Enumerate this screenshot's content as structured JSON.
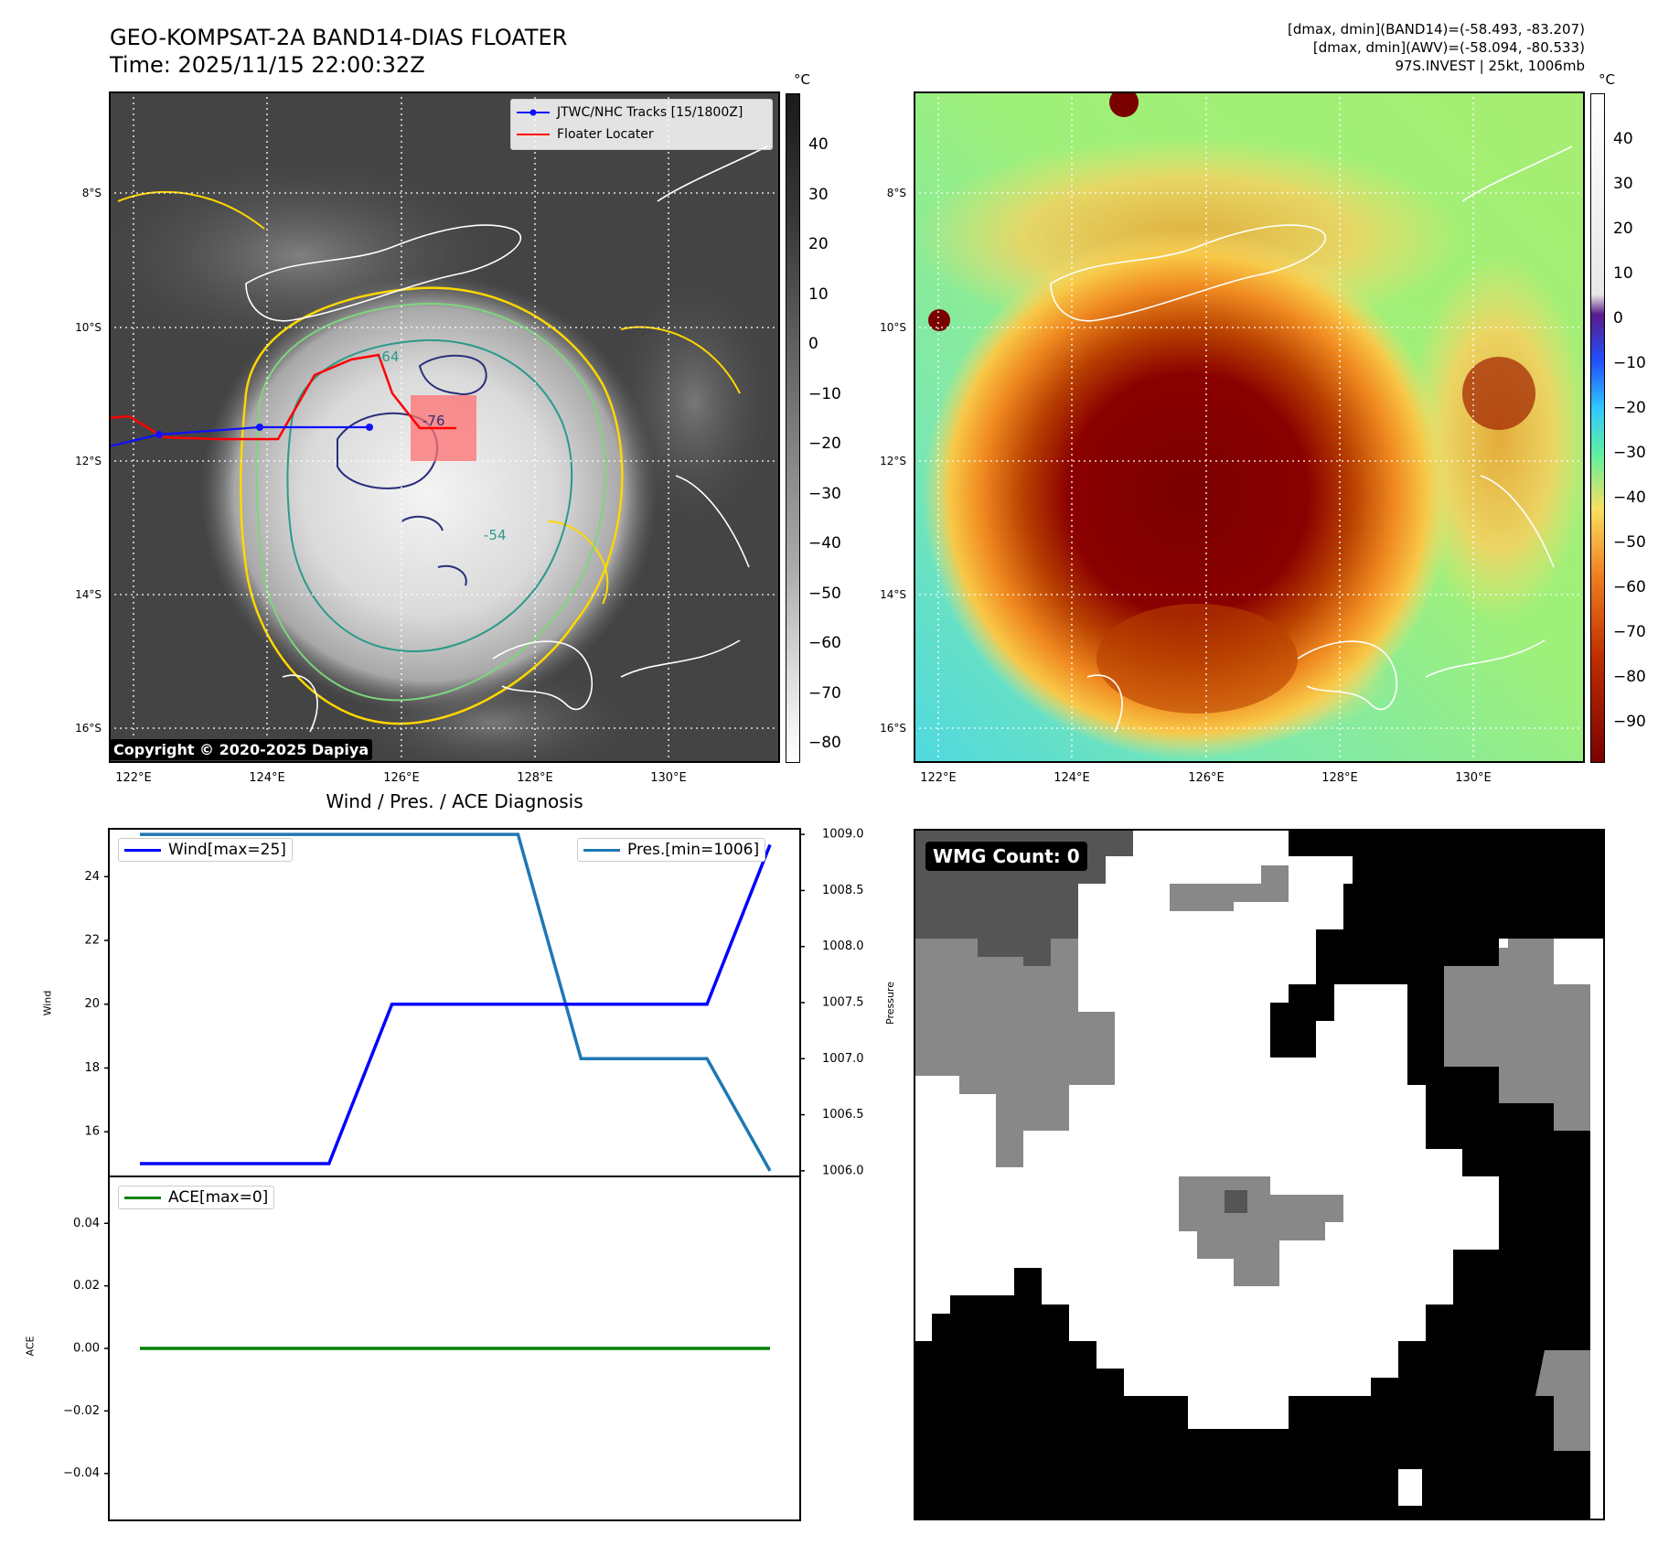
{
  "header": {
    "title_line1": "GEO-KOMPSAT-2A BAND14-DIAS FLOATER",
    "title_line2": "Time: 2025/11/15 22:00:32Z",
    "info_line1": "[dmax, dmin](BAND14)=(-58.493, -83.207)",
    "info_line2": "[dmax, dmin](AWV)=(-58.094, -80.533)",
    "info_line3": "97S.INVEST | 25kt, 1006mb"
  },
  "map_axes": {
    "lon_labels": [
      "122°E",
      "124°E",
      "126°E",
      "128°E",
      "130°E"
    ],
    "lat_labels": [
      "8°S",
      "10°S",
      "12°S",
      "14°S",
      "16°S"
    ]
  },
  "ir_panel": {
    "legend": [
      "JTWC/NHC Tracks [15/1800Z]",
      "Floater Locater"
    ],
    "legend_colors": [
      "#1010ff",
      "#ff0000"
    ],
    "copyright": "Copyright © 2020-2025 Dapiya",
    "contour_labels": [
      "-64",
      "-76",
      "-54"
    ],
    "colorbar_unit": "°C",
    "colorbar_ticks": [
      "40",
      "30",
      "20",
      "10",
      "0",
      "−10",
      "−20",
      "−30",
      "−40",
      "−50",
      "−60",
      "−70",
      "−80"
    ]
  },
  "wv_panel": {
    "colorbar_unit": "°C",
    "colorbar_ticks": [
      "40",
      "30",
      "20",
      "10",
      "0",
      "−10",
      "−20",
      "−30",
      "−40",
      "−50",
      "−60",
      "−70",
      "−80",
      "−90"
    ]
  },
  "diag": {
    "title": "Wind / Pres. / ACE Diagnosis",
    "wind_label": "Wind",
    "pressure_label": "Pressure",
    "ace_label": "ACE",
    "wind_legend": "Wind[max=25]",
    "pres_legend": "Pres.[min=1006]",
    "ace_legend": "ACE[max=0]",
    "wind_ticks": [
      "24",
      "22",
      "20",
      "18",
      "16"
    ],
    "pres_ticks": [
      "1009.0",
      "1008.5",
      "1008.0",
      "1007.5",
      "1007.0",
      "1006.5",
      "1006.0"
    ],
    "ace_ticks": [
      "0.04",
      "0.02",
      "0.00",
      "−0.02",
      "−0.04"
    ],
    "colors": {
      "wind": "#0000ff",
      "pressure": "#1f77b4",
      "ace": "#008000"
    }
  },
  "wmg": {
    "badge": "WMG Count: 0"
  },
  "chart_data": [
    {
      "type": "line",
      "title": "Wind / Pres. / ACE Diagnosis",
      "ylabel": "Wind",
      "ylim": [
        14.6,
        25.5
      ],
      "series": [
        {
          "name": "Wind[max=25]",
          "values": [
            15,
            15,
            15,
            15,
            20,
            20,
            20,
            20,
            20,
            20,
            25
          ]
        }
      ]
    },
    {
      "type": "line",
      "ylabel": "Pressure",
      "ylim": [
        1005.95,
        1009.05
      ],
      "series": [
        {
          "name": "Pres.[min=1006]",
          "values": [
            1009,
            1009,
            1009,
            1009,
            1009,
            1009,
            1009,
            1007,
            1007,
            1007,
            1006
          ]
        }
      ]
    },
    {
      "type": "line",
      "ylabel": "ACE",
      "ylim": [
        -0.055,
        0.055
      ],
      "series": [
        {
          "name": "ACE[max=0]",
          "values": [
            0,
            0,
            0,
            0,
            0,
            0,
            0,
            0,
            0,
            0,
            0
          ]
        }
      ]
    }
  ]
}
